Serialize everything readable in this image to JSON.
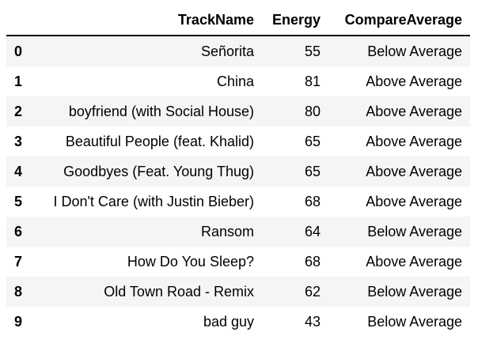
{
  "table": {
    "index_header": "",
    "columns": [
      "TrackName",
      "Energy",
      "CompareAverage"
    ],
    "rows": [
      {
        "index": "0",
        "TrackName": "Señorita",
        "Energy": "55",
        "CompareAverage": "Below Average"
      },
      {
        "index": "1",
        "TrackName": "China",
        "Energy": "81",
        "CompareAverage": "Above Average"
      },
      {
        "index": "2",
        "TrackName": "boyfriend (with Social House)",
        "Energy": "80",
        "CompareAverage": "Above Average"
      },
      {
        "index": "3",
        "TrackName": "Beautiful People (feat. Khalid)",
        "Energy": "65",
        "CompareAverage": "Above Average"
      },
      {
        "index": "4",
        "TrackName": "Goodbyes (Feat. Young Thug)",
        "Energy": "65",
        "CompareAverage": "Above Average"
      },
      {
        "index": "5",
        "TrackName": "I Don't Care (with Justin Bieber)",
        "Energy": "68",
        "CompareAverage": "Above Average"
      },
      {
        "index": "6",
        "TrackName": "Ransom",
        "Energy": "64",
        "CompareAverage": "Below Average"
      },
      {
        "index": "7",
        "TrackName": "How Do You Sleep?",
        "Energy": "68",
        "CompareAverage": "Above Average"
      },
      {
        "index": "8",
        "TrackName": "Old Town Road - Remix",
        "Energy": "62",
        "CompareAverage": "Below Average"
      },
      {
        "index": "9",
        "TrackName": "bad guy",
        "Energy": "43",
        "CompareAverage": "Below Average"
      }
    ]
  }
}
